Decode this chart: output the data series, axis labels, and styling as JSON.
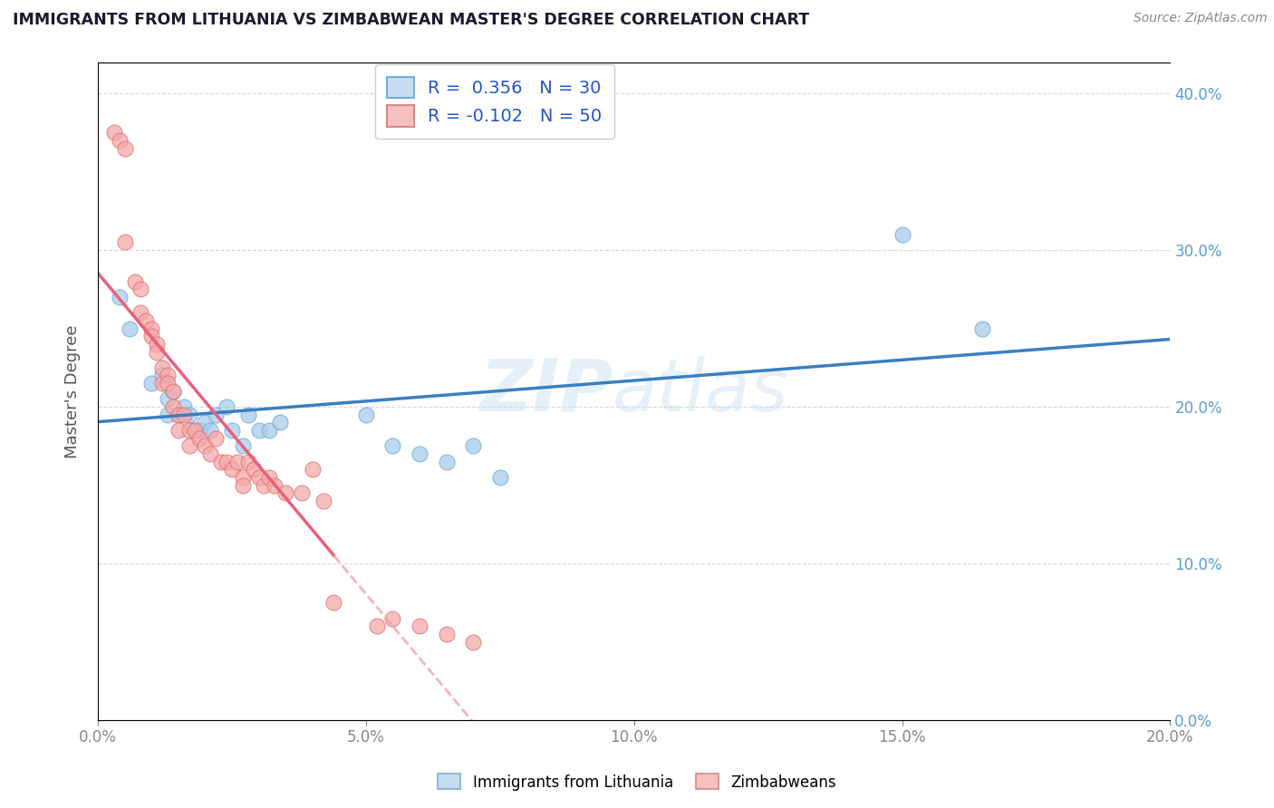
{
  "title": "IMMIGRANTS FROM LITHUANIA VS ZIMBABWEAN MASTER'S DEGREE CORRELATION CHART",
  "source": "Source: ZipAtlas.com",
  "xlabel_legend1": "Immigrants from Lithuania",
  "xlabel_legend2": "Zimbabweans",
  "ylabel": "Master's Degree",
  "r1": 0.356,
  "n1": 30,
  "r2": -0.102,
  "n2": 50,
  "color_blue": "#a8ccec",
  "color_blue_edge": "#6aaad4",
  "color_pink": "#f5a8a8",
  "color_pink_edge": "#e07070",
  "color_blue_line": "#3a7fc1",
  "color_pink_line": "#e8607a",
  "color_pink_dash": "#f0a0b0",
  "watermark": "ZIPatlas",
  "xlim": [
    0.0,
    0.2
  ],
  "ylim": [
    0.0,
    0.42
  ],
  "blue_points": [
    [
      0.004,
      0.27
    ],
    [
      0.006,
      0.25
    ],
    [
      0.01,
      0.215
    ],
    [
      0.012,
      0.22
    ],
    [
      0.013,
      0.205
    ],
    [
      0.013,
      0.195
    ],
    [
      0.014,
      0.21
    ],
    [
      0.015,
      0.195
    ],
    [
      0.016,
      0.2
    ],
    [
      0.017,
      0.195
    ],
    [
      0.018,
      0.185
    ],
    [
      0.019,
      0.185
    ],
    [
      0.02,
      0.19
    ],
    [
      0.021,
      0.185
    ],
    [
      0.022,
      0.195
    ],
    [
      0.024,
      0.2
    ],
    [
      0.025,
      0.185
    ],
    [
      0.027,
      0.175
    ],
    [
      0.028,
      0.195
    ],
    [
      0.03,
      0.185
    ],
    [
      0.032,
      0.185
    ],
    [
      0.034,
      0.19
    ],
    [
      0.05,
      0.195
    ],
    [
      0.055,
      0.175
    ],
    [
      0.06,
      0.17
    ],
    [
      0.065,
      0.165
    ],
    [
      0.07,
      0.175
    ],
    [
      0.075,
      0.155
    ],
    [
      0.15,
      0.31
    ],
    [
      0.165,
      0.25
    ]
  ],
  "pink_points": [
    [
      0.003,
      0.375
    ],
    [
      0.004,
      0.37
    ],
    [
      0.005,
      0.365
    ],
    [
      0.005,
      0.305
    ],
    [
      0.007,
      0.28
    ],
    [
      0.008,
      0.275
    ],
    [
      0.008,
      0.26
    ],
    [
      0.009,
      0.255
    ],
    [
      0.01,
      0.25
    ],
    [
      0.01,
      0.245
    ],
    [
      0.011,
      0.24
    ],
    [
      0.011,
      0.235
    ],
    [
      0.012,
      0.225
    ],
    [
      0.012,
      0.215
    ],
    [
      0.013,
      0.22
    ],
    [
      0.013,
      0.215
    ],
    [
      0.014,
      0.21
    ],
    [
      0.014,
      0.2
    ],
    [
      0.015,
      0.195
    ],
    [
      0.015,
      0.185
    ],
    [
      0.016,
      0.195
    ],
    [
      0.017,
      0.185
    ],
    [
      0.017,
      0.175
    ],
    [
      0.018,
      0.185
    ],
    [
      0.019,
      0.18
    ],
    [
      0.02,
      0.175
    ],
    [
      0.021,
      0.17
    ],
    [
      0.022,
      0.18
    ],
    [
      0.023,
      0.165
    ],
    [
      0.024,
      0.165
    ],
    [
      0.025,
      0.16
    ],
    [
      0.026,
      0.165
    ],
    [
      0.027,
      0.155
    ],
    [
      0.027,
      0.15
    ],
    [
      0.028,
      0.165
    ],
    [
      0.029,
      0.16
    ],
    [
      0.03,
      0.155
    ],
    [
      0.031,
      0.15
    ],
    [
      0.032,
      0.155
    ],
    [
      0.033,
      0.15
    ],
    [
      0.035,
      0.145
    ],
    [
      0.038,
      0.145
    ],
    [
      0.04,
      0.16
    ],
    [
      0.042,
      0.14
    ],
    [
      0.044,
      0.075
    ],
    [
      0.052,
      0.06
    ],
    [
      0.055,
      0.065
    ],
    [
      0.06,
      0.06
    ],
    [
      0.065,
      0.055
    ],
    [
      0.07,
      0.05
    ]
  ]
}
